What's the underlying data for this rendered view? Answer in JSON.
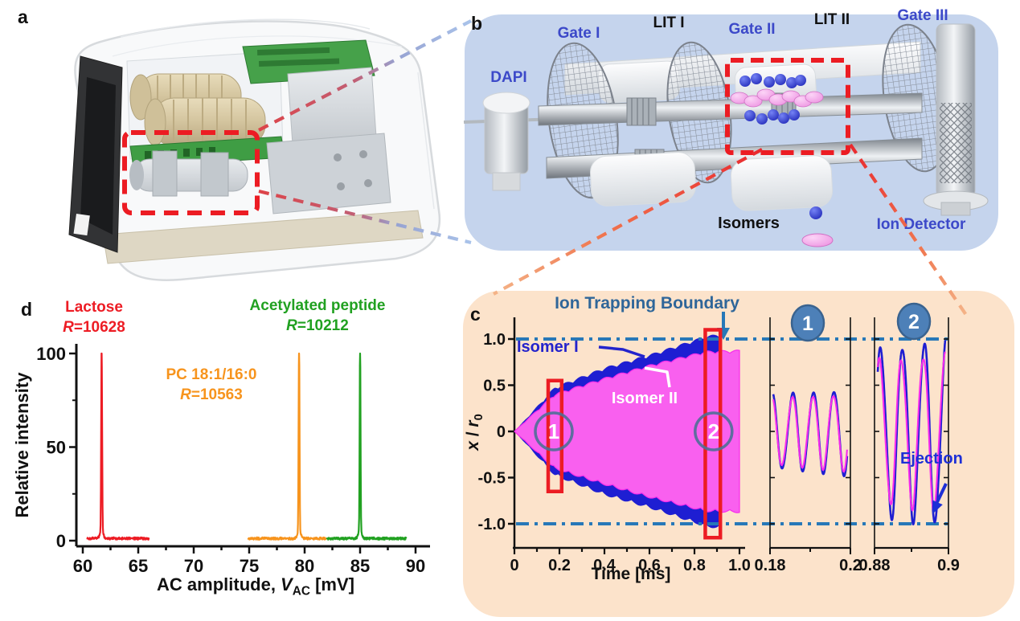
{
  "panel_a": {
    "label": "a"
  },
  "panel_b": {
    "label": "b",
    "dapi": "DAPI",
    "gate1": "Gate I",
    "lit1": "LIT I",
    "gate2": "Gate II",
    "lit2": "LIT II",
    "gate3": "Gate III",
    "isomers": "Isomers",
    "ion_detector": "Ion Detector",
    "colors": {
      "bg": "#c5d4ed",
      "label_blue": "#3c49c9",
      "ion_blue": "#2330cf",
      "ion_pink": "#f2a6e9",
      "highlight_red": "#ec1c23"
    }
  },
  "panel_c": {
    "label": "c",
    "boundary_label": "Ion Trapping Boundary",
    "isomer1": "Isomer I",
    "isomer2": "Isomer II",
    "ejection": "Ejection",
    "ylabel": {
      "var1": "x",
      "sep": " / ",
      "var2": "r",
      "sub": "0"
    },
    "colors": {
      "bg": "#fce3cb",
      "boundary": "#2778b8",
      "boundary_text": "#2f6699",
      "isomer1_blue": "#1e1ed2",
      "isomer2_magenta": "#f82cec",
      "isomer2_fill": "#f960ef",
      "marker_red": "#ec1c23",
      "badge_blue": "#4d80b8",
      "annotation_blue": "#1d2fd6"
    }
  },
  "panel_d": {
    "label": "d",
    "ylabel": "Relative intensity",
    "xlabel": {
      "pre": "AC amplitude, ",
      "var": "V",
      "sub": "AC",
      "post": " [mV]"
    }
  },
  "chart_data": [
    {
      "id": "c",
      "type": "line",
      "title": "Ion Trapping Boundary",
      "xlabel": "Time [ms]",
      "ylabel": "x / r0",
      "main": {
        "xlim": [
          0,
          1.0
        ],
        "ylim": [
          -1.25,
          1.15
        ],
        "xticks": [
          0,
          0.2,
          0.4,
          0.6,
          0.8,
          1.0
        ],
        "xtick_labels": [
          "0",
          "0.2",
          "0.4",
          "0.6",
          "0.8",
          "1.0"
        ],
        "yticks": [
          1.0,
          0.5,
          0,
          -0.5,
          -1.0
        ],
        "ytick_labels": [
          "1.0",
          "0.5",
          "0",
          "-0.5",
          "-1.0"
        ],
        "boundary_y": [
          1.0,
          -1.0
        ],
        "grid": false,
        "series": [
          {
            "name": "Isomer I",
            "color": "#1e1ed2",
            "role": "oscillation-envelope",
            "amplitude_vs_time": [
              [
                0,
                0
              ],
              [
                0.18,
                0.45
              ],
              [
                0.4,
                0.66
              ],
              [
                0.6,
                0.8
              ],
              [
                0.85,
                1.0
              ],
              [
                0.9,
                1.02
              ]
            ],
            "ejected_at": 0.9
          },
          {
            "name": "Isomer II",
            "color": "#f82cec",
            "role": "oscillation-envelope",
            "amplitude_vs_time": [
              [
                0,
                0
              ],
              [
                0.18,
                0.38
              ],
              [
                0.4,
                0.55
              ],
              [
                0.6,
                0.69
              ],
              [
                0.85,
                0.84
              ],
              [
                1.0,
                0.85
              ]
            ]
          }
        ],
        "highlight_windows": [
          {
            "label": "1",
            "t": [
              0.15,
              0.21
            ]
          },
          {
            "label": "2",
            "t": [
              0.848,
              0.915
            ]
          }
        ]
      },
      "insets": [
        {
          "label": "1",
          "xlim": [
            0.18,
            0.2
          ],
          "xtick_labels": [
            "0.18",
            "0.2"
          ],
          "cycles": 3.6,
          "amplitude_range": [
            0.4,
            0.46
          ]
        },
        {
          "label": "2",
          "xlim": [
            0.88,
            0.9
          ],
          "xtick_labels": [
            "0.88",
            "0.9"
          ],
          "cycles": 3.1,
          "amplitude_range": [
            0.9,
            1.0
          ]
        }
      ]
    },
    {
      "id": "d",
      "type": "line",
      "xlabel": "AC amplitude, V_AC [mV]",
      "ylabel": "Relative intensity",
      "xlim": [
        60,
        90
      ],
      "xticks": [
        60,
        65,
        70,
        75,
        80,
        85,
        90
      ],
      "ylim": [
        0,
        100
      ],
      "yticks": [
        0,
        50,
        100
      ],
      "series": [
        {
          "name": "Lactose",
          "resolution_symbol": "R",
          "resolution_label": "=10628",
          "color": "#ed1c24",
          "peak_x": 61.7,
          "peak_y": 100,
          "baseline_range": [
            60.4,
            66.0
          ]
        },
        {
          "name": "PC 18:1/16:0",
          "resolution_symbol": "R",
          "resolution_label": "=10563",
          "color": "#f7941d",
          "peak_x": 79.5,
          "peak_y": 100,
          "baseline_range": [
            74.9,
            82.0
          ]
        },
        {
          "name": "Acetylated peptide",
          "resolution_symbol": "R",
          "resolution_label": "=10212",
          "color": "#21a121",
          "peak_x": 85.0,
          "peak_y": 100,
          "baseline_range": [
            82.0,
            89.2
          ]
        }
      ]
    }
  ]
}
